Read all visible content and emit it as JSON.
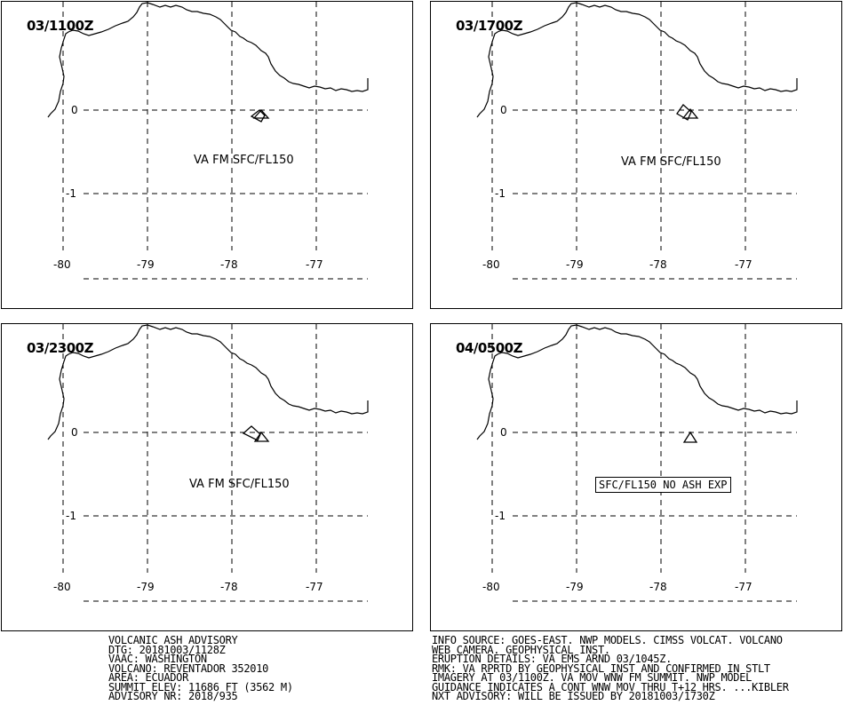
{
  "panels": [
    {
      "time": "03/1100Z",
      "ash_label": "VA FM SFC/FL150",
      "ash_boxed": false
    },
    {
      "time": "03/1700Z",
      "ash_label": "VA FM SFC/FL150",
      "ash_boxed": false
    },
    {
      "time": "03/2300Z",
      "ash_label": "VA FM SFC/FL150",
      "ash_boxed": false
    },
    {
      "time": "04/0500Z",
      "ash_label": "SFC/FL150 NO ASH EXP",
      "ash_boxed": true
    }
  ],
  "map": {
    "lat_labels": [
      "0",
      "-1"
    ],
    "lon_labels": [
      "-80",
      "-79",
      "-78",
      "-77"
    ]
  },
  "advisory": {
    "left": [
      "VOLCANIC ASH ADVISORY",
      "DTG: 20181003/1128Z",
      "VAAC: WASHINGTON",
      "VOLCANO: REVENTADOR 352010",
      "AREA: ECUADOR",
      "SUMMIT ELEV: 11686 FT (3562 M)",
      "ADVISORY NR: 2018/935"
    ],
    "right": [
      "INFO SOURCE: GOES-EAST. NWP MODELS. CIMSS VOLCAT. VOLCANO",
      "WEB CAMERA. GEOPHYSICAL INST.",
      "ERUPTION DETAILS: VA EMS ARND 03/1045Z.",
      "RMK: VA RPRTD BY GEOPHYSICAL INST AND CONFIRMED IN STLT",
      "IMAGERY AT 03/1100Z. VA MOV WNW FM SUMMIT. NWP MODEL",
      "GUIDANCE INDICATES A CONT WNW MOV THRU T+12 HRS. ...KIBLER",
      "NXT ADVISORY: WILL BE ISSUED BY 20181003/1730Z"
    ]
  }
}
